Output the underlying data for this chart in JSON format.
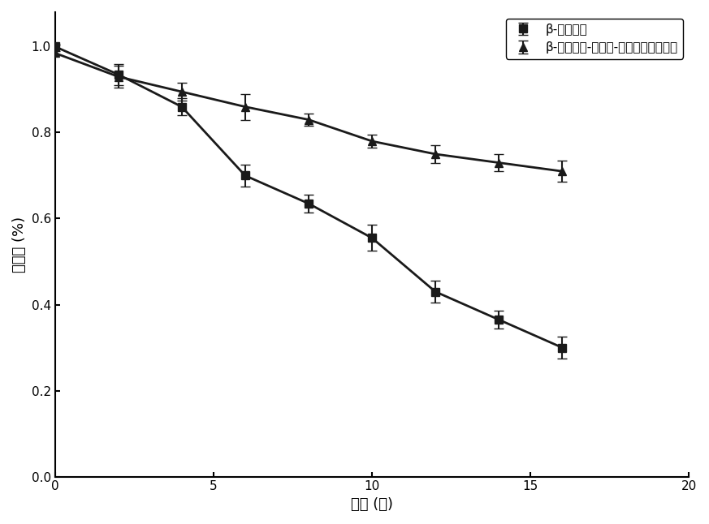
{
  "x": [
    0,
    2,
    4,
    6,
    8,
    10,
    12,
    14,
    16
  ],
  "series1_y": [
    1.0,
    0.935,
    0.86,
    0.7,
    0.635,
    0.555,
    0.43,
    0.365,
    0.3
  ],
  "series1_yerr": [
    0.005,
    0.025,
    0.02,
    0.025,
    0.02,
    0.03,
    0.025,
    0.02,
    0.025
  ],
  "series2_y": [
    0.985,
    0.93,
    0.895,
    0.86,
    0.83,
    0.78,
    0.75,
    0.73,
    0.71
  ],
  "series2_yerr": [
    0.005,
    0.025,
    0.02,
    0.03,
    0.015,
    0.015,
    0.02,
    0.02,
    0.025
  ],
  "series1_label": "β-乳球蛋白",
  "series2_label": "β-乳球蛋白-阿魏酸-居蔗糖共价复合物",
  "xlabel": "时间 (天)",
  "ylabel": "保留率 (%)",
  "xlim": [
    0,
    20
  ],
  "ylim": [
    0.0,
    1.08
  ],
  "yticks": [
    0.0,
    0.2,
    0.4,
    0.6,
    0.8,
    1.0
  ],
  "xticks": [
    0,
    5,
    10,
    15,
    20
  ],
  "line_color": "#1a1a1a",
  "marker1": "s",
  "marker2": "^",
  "markersize": 7,
  "linewidth": 2.0,
  "capsize": 4,
  "elinewidth": 1.5,
  "legend_fontsize": 11,
  "axis_fontsize": 13,
  "tick_fontsize": 11,
  "figsize": [
    8.73,
    6.46
  ],
  "dpi": 100
}
